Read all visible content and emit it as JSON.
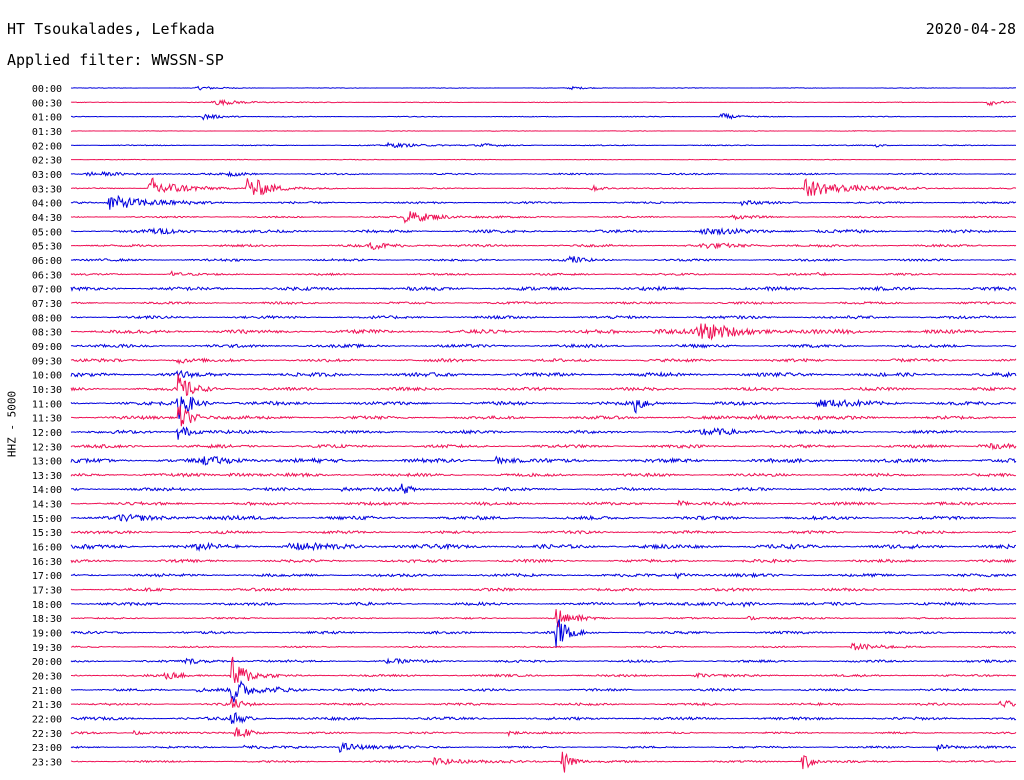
{
  "header": {
    "station": "HT Tsoukalades, Lefkada",
    "date": "2020-04-28",
    "filter": "Applied filter: WWSSN-SP"
  },
  "chart_data": {
    "type": "line",
    "title": "HT Tsoukalades, Lefkada",
    "ylabel": "HHZ - 5000",
    "colors": {
      "even": "#0000dd",
      "odd": "#ee1155"
    },
    "tick_labels": [
      "00:00",
      "00:30",
      "01:00",
      "01:30",
      "02:00",
      "02:30",
      "03:00",
      "03:30",
      "04:00",
      "04:30",
      "05:00",
      "05:30",
      "06:00",
      "06:30",
      "07:00",
      "07:30",
      "08:00",
      "08:30",
      "09:00",
      "09:30",
      "10:00",
      "10:30",
      "11:00",
      "11:30",
      "12:00",
      "12:30",
      "13:00",
      "13:30",
      "14:00",
      "14:30",
      "15:00",
      "15:30",
      "16:00",
      "16:30",
      "17:00",
      "17:30",
      "18:00",
      "18:30",
      "19:00",
      "19:30",
      "20:00",
      "20:30",
      "21:00",
      "21:30",
      "22:00",
      "22:30",
      "23:00",
      "23:30"
    ],
    "x_range_minutes": [
      0,
      30
    ],
    "traces": [
      {
        "noise": 0.3,
        "events": [
          {
            "t": 4.0,
            "a": 2,
            "d": 0.6
          },
          {
            "t": 15.8,
            "a": 1.5,
            "d": 0.5
          }
        ]
      },
      {
        "noise": 0.3,
        "events": [
          {
            "t": 4.5,
            "a": 3,
            "d": 1.0
          },
          {
            "t": 29.1,
            "a": 4,
            "d": 0.3
          }
        ]
      },
      {
        "noise": 0.4,
        "events": [
          {
            "t": 4.2,
            "a": 3,
            "d": 0.6
          },
          {
            "t": 20.6,
            "a": 4,
            "d": 0.4
          }
        ]
      },
      {
        "noise": 0.3,
        "events": []
      },
      {
        "noise": 0.5,
        "events": [
          {
            "t": 10.0,
            "a": 2,
            "d": 1.5
          },
          {
            "t": 13.0,
            "a": 2,
            "d": 0.3
          },
          {
            "t": 25.5,
            "a": 2,
            "d": 0.3
          }
        ]
      },
      {
        "noise": 0.3,
        "events": []
      },
      {
        "noise": 0.8,
        "events": [
          {
            "t": 5.0,
            "a": 2,
            "d": 0.5
          },
          {
            "t": 0.5,
            "a": 1.5,
            "d": 1.5
          }
        ]
      },
      {
        "noise": 0.6,
        "events": [
          {
            "t": 2.5,
            "a": 12,
            "d": 0.8
          },
          {
            "t": 5.6,
            "a": 14,
            "d": 0.6
          },
          {
            "t": 16.5,
            "a": 3,
            "d": 0.5
          },
          {
            "t": 23.3,
            "a": 9,
            "d": 1.3
          }
        ]
      },
      {
        "noise": 1.0,
        "events": [
          {
            "t": 1.2,
            "a": 8,
            "d": 1.2
          },
          {
            "t": 21.3,
            "a": 2,
            "d": 0.5
          }
        ]
      },
      {
        "noise": 0.8,
        "events": [
          {
            "t": 10.6,
            "a": 6,
            "d": 1.0
          },
          {
            "t": 21.0,
            "a": 2,
            "d": 0.5
          }
        ]
      },
      {
        "noise": 1.5,
        "events": [
          {
            "t": 2.5,
            "a": 2,
            "d": 1.2
          },
          {
            "t": 20.0,
            "a": 2,
            "d": 2.0
          }
        ]
      },
      {
        "noise": 1.2,
        "events": [
          {
            "t": 9.5,
            "a": 3,
            "d": 0.8
          },
          {
            "t": 20.0,
            "a": 2,
            "d": 1.5
          }
        ]
      },
      {
        "noise": 1.2,
        "events": [
          {
            "t": 15.8,
            "a": 5,
            "d": 0.3
          }
        ]
      },
      {
        "noise": 1.0,
        "events": [
          {
            "t": 3.2,
            "a": 3,
            "d": 0.3
          },
          {
            "t": 23.7,
            "a": 2,
            "d": 0.3
          }
        ]
      },
      {
        "noise": 1.8,
        "events": []
      },
      {
        "noise": 1.2,
        "events": []
      },
      {
        "noise": 1.5,
        "events": []
      },
      {
        "noise": 2.0,
        "events": [
          {
            "t": 19.9,
            "a": 8,
            "d": 1.0
          },
          {
            "t": 18.5,
            "a": 2,
            "d": 2.0
          }
        ]
      },
      {
        "noise": 1.6,
        "events": []
      },
      {
        "noise": 1.6,
        "events": [
          {
            "t": 3.4,
            "a": 5,
            "d": 0.2
          }
        ]
      },
      {
        "noise": 2.0,
        "events": [
          {
            "t": 3.4,
            "a": 6,
            "d": 0.2
          }
        ]
      },
      {
        "noise": 1.6,
        "events": [
          {
            "t": 3.4,
            "a": 14,
            "d": 0.4
          }
        ]
      },
      {
        "noise": 1.8,
        "events": [
          {
            "t": 3.4,
            "a": 16,
            "d": 0.4
          },
          {
            "t": 17.9,
            "a": 10,
            "d": 0.3
          },
          {
            "t": 23.7,
            "a": 4,
            "d": 1.0
          }
        ]
      },
      {
        "noise": 1.6,
        "events": [
          {
            "t": 3.4,
            "a": 14,
            "d": 0.4
          },
          {
            "t": 21.5,
            "a": 2,
            "d": 1.5
          }
        ]
      },
      {
        "noise": 1.6,
        "events": [
          {
            "t": 3.4,
            "a": 10,
            "d": 0.3
          },
          {
            "t": 20.0,
            "a": 3,
            "d": 1.5
          }
        ]
      },
      {
        "noise": 1.6,
        "events": [
          {
            "t": 28.8,
            "a": 3,
            "d": 1.2
          }
        ]
      },
      {
        "noise": 2.0,
        "events": [
          {
            "t": 4.2,
            "a": 3,
            "d": 1.2
          },
          {
            "t": 13.5,
            "a": 4,
            "d": 0.4
          }
        ]
      },
      {
        "noise": 1.6,
        "events": [
          {
            "t": 5.0,
            "a": 2,
            "d": 0.8
          }
        ]
      },
      {
        "noise": 1.6,
        "events": [
          {
            "t": 10.5,
            "a": 4,
            "d": 0.3
          },
          {
            "t": 8.6,
            "a": 2,
            "d": 0.5
          }
        ]
      },
      {
        "noise": 1.6,
        "events": [
          {
            "t": 19.3,
            "a": 4,
            "d": 0.2
          }
        ]
      },
      {
        "noise": 1.8,
        "events": [
          {
            "t": 1.5,
            "a": 2,
            "d": 2.0
          }
        ]
      },
      {
        "noise": 1.5,
        "events": []
      },
      {
        "noise": 2.2,
        "events": [
          {
            "t": 6.9,
            "a": 3,
            "d": 1.2
          },
          {
            "t": 4.0,
            "a": 2,
            "d": 0.5
          }
        ]
      },
      {
        "noise": 1.5,
        "events": []
      },
      {
        "noise": 1.6,
        "events": [
          {
            "t": 19.2,
            "a": 3,
            "d": 0.4
          }
        ]
      },
      {
        "noise": 1.5,
        "events": []
      },
      {
        "noise": 1.5,
        "events": [
          {
            "t": 21.3,
            "a": 3,
            "d": 0.3
          },
          {
            "t": 18.0,
            "a": 1.5,
            "d": 1.0
          }
        ]
      },
      {
        "noise": 0.8,
        "events": [
          {
            "t": 16.0,
            "a": 2,
            "d": 0.5
          },
          {
            "t": 21.5,
            "a": 2,
            "d": 0.6
          },
          {
            "t": 15.4,
            "a": 14,
            "d": 0.25
          }
        ]
      },
      {
        "noise": 1.3,
        "events": [
          {
            "t": 15.4,
            "a": 18,
            "d": 0.3
          }
        ]
      },
      {
        "noise": 0.8,
        "events": [
          {
            "t": 24.8,
            "a": 4,
            "d": 0.7
          }
        ]
      },
      {
        "noise": 1.2,
        "events": [
          {
            "t": 3.6,
            "a": 2,
            "d": 1.0
          },
          {
            "t": 10.0,
            "a": 1.5,
            "d": 1.0
          }
        ]
      },
      {
        "noise": 1.2,
        "events": [
          {
            "t": 3.0,
            "a": 4,
            "d": 0.5
          },
          {
            "t": 19.8,
            "a": 3,
            "d": 0.3
          },
          {
            "t": 5.1,
            "a": 20,
            "d": 0.4
          }
        ]
      },
      {
        "noise": 1.2,
        "events": [
          {
            "t": 5.1,
            "a": 16,
            "d": 0.4
          },
          {
            "t": 4.0,
            "a": 2,
            "d": 1.0
          },
          {
            "t": 6.5,
            "a": 2,
            "d": 0.8
          }
        ]
      },
      {
        "noise": 1.2,
        "events": [
          {
            "t": 29.5,
            "a": 4,
            "d": 0.7
          },
          {
            "t": 5.1,
            "a": 6,
            "d": 0.3
          }
        ]
      },
      {
        "noise": 1.5,
        "events": [
          {
            "t": 5.1,
            "a": 8,
            "d": 0.3
          }
        ]
      },
      {
        "noise": 1.0,
        "events": [
          {
            "t": 5.2,
            "a": 14,
            "d": 0.3
          },
          {
            "t": 2.0,
            "a": 2,
            "d": 0.5
          },
          {
            "t": 13.9,
            "a": 3,
            "d": 0.2
          }
        ]
      },
      {
        "noise": 1.0,
        "events": [
          {
            "t": 8.5,
            "a": 5,
            "d": 0.8
          },
          {
            "t": 5.5,
            "a": 2,
            "d": 0.7
          },
          {
            "t": 27.5,
            "a": 3,
            "d": 0.6
          }
        ]
      },
      {
        "noise": 1.0,
        "events": [
          {
            "t": 15.6,
            "a": 14,
            "d": 0.3
          },
          {
            "t": 11.5,
            "a": 4,
            "d": 1.0
          },
          {
            "t": 23.2,
            "a": 12,
            "d": 0.3
          }
        ]
      }
    ]
  }
}
